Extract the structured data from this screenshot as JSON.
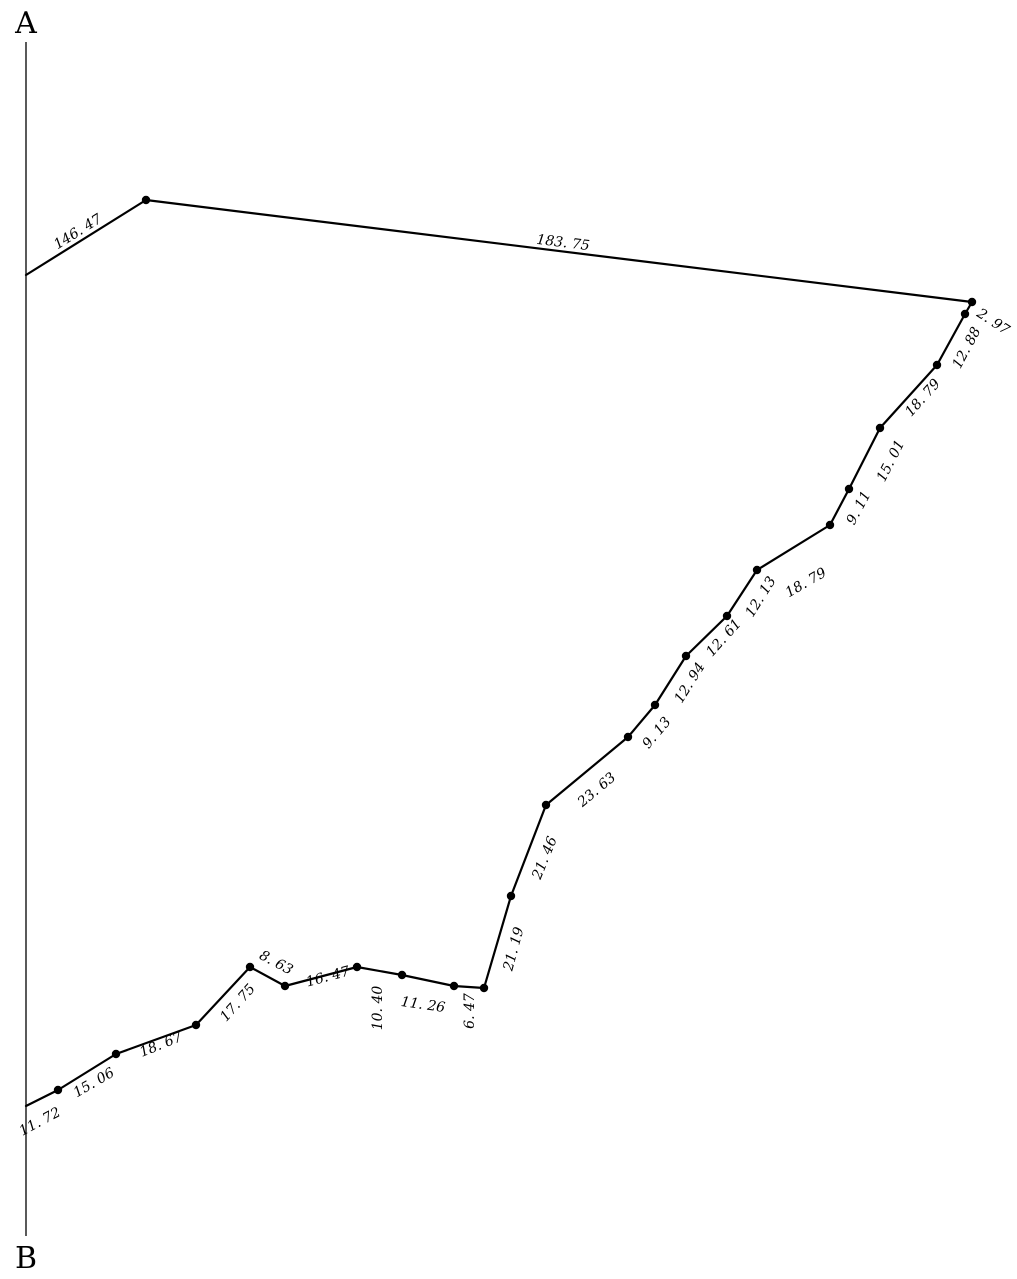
{
  "diagram": {
    "label_top": "A",
    "label_bottom": "B",
    "segments": [
      {
        "length": "146. 47"
      },
      {
        "length": "183. 75"
      },
      {
        "length": "2. 97"
      },
      {
        "length": "12. 88"
      },
      {
        "length": "18. 79"
      },
      {
        "length": "15. 01"
      },
      {
        "length": "9. 11"
      },
      {
        "length": "18. 79"
      },
      {
        "length": "12. 13"
      },
      {
        "length": "12. 61"
      },
      {
        "length": "12. 94"
      },
      {
        "length": "9. 13"
      },
      {
        "length": "23. 63"
      },
      {
        "length": "21. 46"
      },
      {
        "length": "21. 19"
      },
      {
        "length": "6. 47"
      },
      {
        "length": "11. 26"
      },
      {
        "length": "10. 40"
      },
      {
        "length": "16. 47"
      },
      {
        "length": "8. 63"
      },
      {
        "length": "17. 75"
      },
      {
        "length": "18. 67"
      },
      {
        "length": "15. 06"
      },
      {
        "length": "11. 72"
      }
    ]
  }
}
